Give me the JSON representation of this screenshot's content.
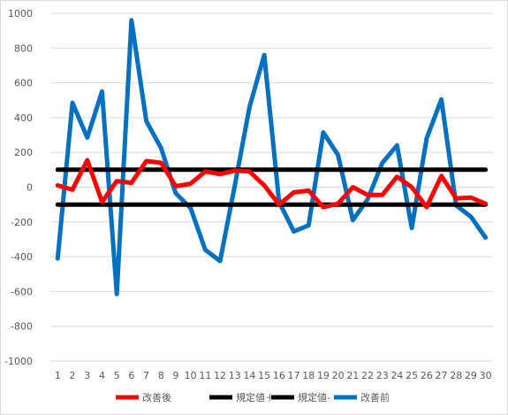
{
  "chart_data": {
    "type": "line",
    "title": "",
    "xlabel": "",
    "ylabel": "",
    "x": [
      1,
      2,
      3,
      4,
      5,
      6,
      7,
      8,
      9,
      10,
      11,
      12,
      13,
      14,
      15,
      16,
      17,
      18,
      19,
      20,
      21,
      22,
      23,
      24,
      25,
      26,
      27,
      28,
      29,
      30
    ],
    "ylim": [
      -1000,
      1000
    ],
    "yticks": [
      -1000,
      -800,
      -600,
      -400,
      -200,
      0,
      200,
      400,
      600,
      800,
      1000
    ],
    "grid": true,
    "legend_position": "bottom",
    "series": [
      {
        "name": "改善後",
        "color": "#ff0000",
        "values": [
          10,
          -15,
          155,
          -85,
          35,
          25,
          150,
          140,
          5,
          20,
          90,
          75,
          95,
          90,
          10,
          -100,
          -30,
          -20,
          -115,
          -95,
          0,
          -45,
          -45,
          60,
          0,
          -115,
          65,
          -65,
          -60,
          -95
        ]
      },
      {
        "name": "規定値＋",
        "color": "#000000",
        "values": [
          100,
          100,
          100,
          100,
          100,
          100,
          100,
          100,
          100,
          100,
          100,
          100,
          100,
          100,
          100,
          100,
          100,
          100,
          100,
          100,
          100,
          100,
          100,
          100,
          100,
          100,
          100,
          100,
          100,
          100
        ]
      },
      {
        "name": "規定値-",
        "color": "#000000",
        "values": [
          -100,
          -100,
          -100,
          -100,
          -100,
          -100,
          -100,
          -100,
          -100,
          -100,
          -100,
          -100,
          -100,
          -100,
          -100,
          -100,
          -100,
          -100,
          -100,
          -100,
          -100,
          -100,
          -100,
          -100,
          -100,
          -100,
          -100,
          -100,
          -100,
          -100
        ]
      },
      {
        "name": "改善前",
        "color": "#0070c0",
        "values": [
          -410,
          485,
          285,
          550,
          -615,
          960,
          380,
          225,
          -35,
          -120,
          -360,
          -425,
          10,
          460,
          760,
          -85,
          -255,
          -220,
          315,
          185,
          -190,
          -70,
          140,
          240,
          -235,
          280,
          505,
          -105,
          -170,
          -290
        ]
      }
    ]
  }
}
